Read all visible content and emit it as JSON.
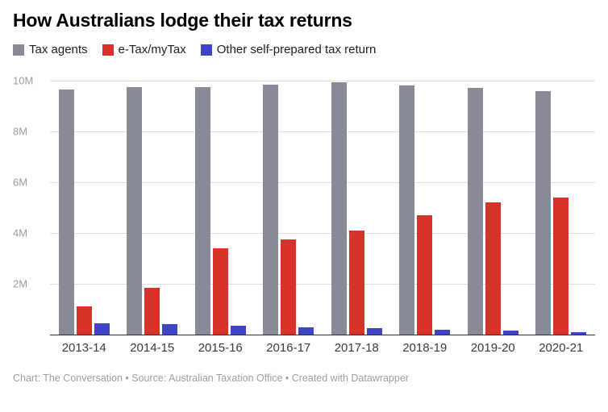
{
  "chart_data": {
    "type": "bar",
    "title": "How Australians lodge their tax returns",
    "categories": [
      "2013-14",
      "2014-15",
      "2015-16",
      "2016-17",
      "2017-18",
      "2018-19",
      "2019-20",
      "2020-21"
    ],
    "series": [
      {
        "name": "Tax agents",
        "color": "#898a97",
        "values": [
          9650000,
          9750000,
          9750000,
          9850000,
          9950000,
          9800000,
          9700000,
          9600000
        ]
      },
      {
        "name": "e-Tax/myTax",
        "color": "#d6342b",
        "values": [
          1100000,
          1850000,
          3400000,
          3750000,
          4100000,
          4700000,
          5200000,
          5400000
        ]
      },
      {
        "name": "Other self-prepared tax return",
        "color": "#3d45c5",
        "values": [
          450000,
          400000,
          350000,
          300000,
          250000,
          200000,
          150000,
          100000
        ]
      }
    ],
    "ylim": [
      0,
      10000000
    ],
    "yticks": [
      {
        "value": 2000000,
        "label": "2M"
      },
      {
        "value": 4000000,
        "label": "4M"
      },
      {
        "value": 6000000,
        "label": "6M"
      },
      {
        "value": 8000000,
        "label": "8M"
      },
      {
        "value": 10000000,
        "label": "10M"
      }
    ],
    "grid": true,
    "legend_position": "top",
    "xlabel": "",
    "ylabel": ""
  },
  "footer": {
    "text": "Chart: The Conversation • Source: Australian Taxation Office • Created with Datawrapper"
  }
}
